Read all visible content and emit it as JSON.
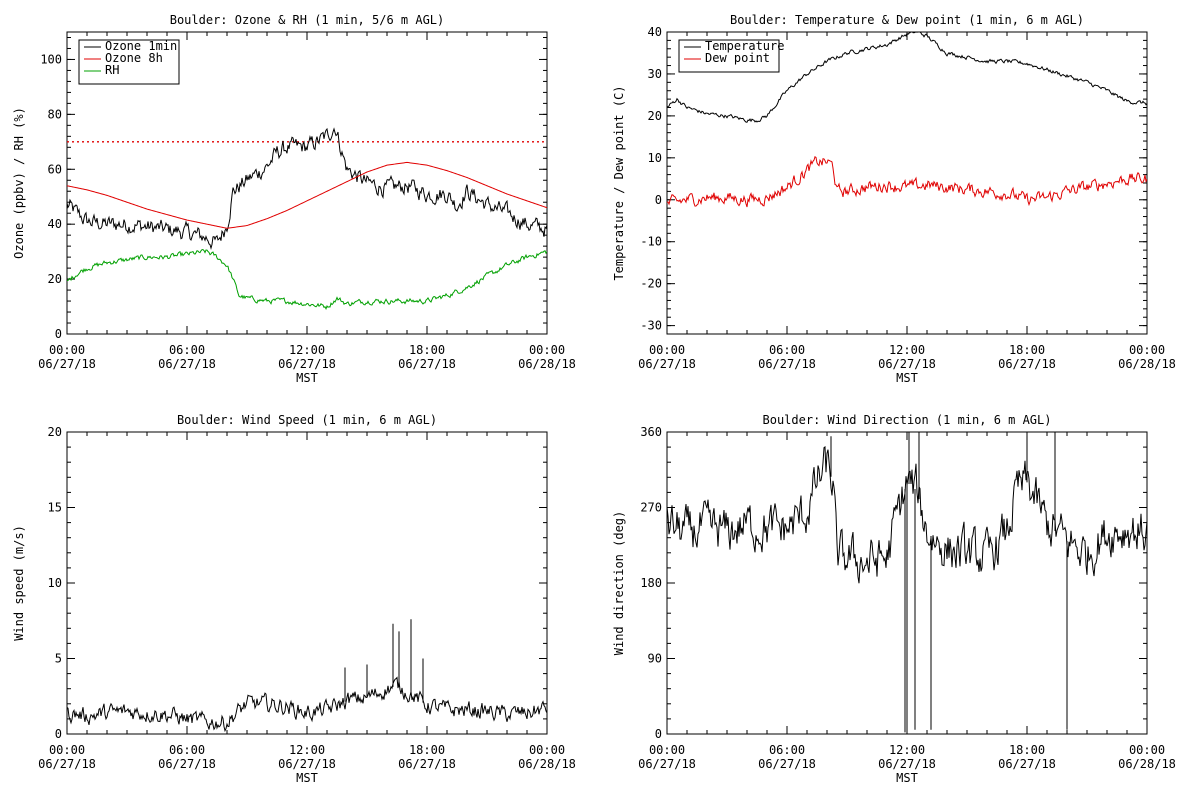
{
  "chart_data": [
    {
      "id": "ozone_rh",
      "type": "line",
      "title": "Boulder: Ozone & RH (1 min, 5/6 m AGL)",
      "xlabel": "MST",
      "ylabel": "Ozone (ppbv) / RH (%)",
      "ylim": [
        0,
        110
      ],
      "yticks": [
        0,
        20,
        40,
        60,
        80,
        100
      ],
      "xlim_hours": [
        0,
        24
      ],
      "xticks": [
        {
          "h": 0,
          "time": "00:00",
          "date": "06/27/18"
        },
        {
          "h": 6,
          "time": "06:00",
          "date": "06/27/18"
        },
        {
          "h": 12,
          "time": "12:00",
          "date": "06/27/18"
        },
        {
          "h": 18,
          "time": "18:00",
          "date": "06/27/18"
        },
        {
          "h": 24,
          "time": "00:00",
          "date": "06/28/18"
        }
      ],
      "legend": {
        "position": "top-left"
      },
      "reference_line": {
        "y": 70,
        "color": "#e00000",
        "style": "dotted"
      },
      "series": [
        {
          "name": "Ozone 1min",
          "color": "#000000",
          "noise": 2.5,
          "x": [
            0,
            0.5,
            1,
            2,
            3,
            4,
            5,
            6,
            7,
            7.5,
            8,
            8.3,
            9,
            10,
            10.5,
            11,
            12,
            12.5,
            13,
            13.4,
            13.8,
            14,
            15,
            16,
            17,
            18,
            19,
            19.5,
            20,
            21,
            22,
            23,
            24
          ],
          "y": [
            47,
            44,
            41,
            40,
            40,
            39,
            38,
            37,
            35,
            33,
            40,
            52,
            56,
            61,
            66,
            68,
            68,
            70,
            72,
            76,
            65,
            60,
            55,
            53,
            54,
            51,
            51,
            47,
            52,
            47,
            44,
            40,
            38
          ]
        },
        {
          "name": "Ozone 8h",
          "color": "#e00000",
          "noise": 0,
          "x": [
            0,
            1,
            2,
            3,
            4,
            5,
            6,
            7,
            8,
            9,
            10,
            11,
            12,
            13,
            14,
            15,
            16,
            17,
            18,
            19,
            20,
            21,
            22,
            23,
            24
          ],
          "y": [
            54,
            52.5,
            50.5,
            48,
            45.5,
            43.5,
            41.5,
            40,
            38.5,
            39.5,
            42,
            45,
            48.5,
            52,
            55.5,
            59,
            61.5,
            62.5,
            61.5,
            59.5,
            57,
            54,
            51,
            48.5,
            46
          ]
        },
        {
          "name": "RH",
          "color": "#00a000",
          "noise": 0.8,
          "x": [
            0,
            0.5,
            1,
            2,
            3,
            4,
            5,
            6,
            7,
            7.5,
            8,
            8.3,
            8.6,
            9,
            10,
            11,
            12,
            13,
            13.5,
            14,
            15,
            16,
            17,
            18,
            19,
            20,
            21,
            22,
            23,
            24
          ],
          "y": [
            19,
            22,
            24,
            26,
            27,
            28,
            28,
            29,
            30,
            28,
            25,
            20,
            14,
            13,
            12,
            12,
            11,
            10,
            13,
            11,
            12,
            12,
            12,
            12,
            14,
            17,
            21,
            25,
            28,
            30
          ]
        }
      ]
    },
    {
      "id": "temp_dew",
      "type": "line",
      "title": "Boulder: Temperature & Dew point (1 min, 6 m AGL)",
      "xlabel": "MST",
      "ylabel": "Temperature / Dew point (C)",
      "ylim": [
        -32,
        40
      ],
      "yticks": [
        -30,
        -20,
        -10,
        0,
        10,
        20,
        30,
        40
      ],
      "xlim_hours": [
        0,
        24
      ],
      "xticks": [
        {
          "h": 0,
          "time": "00:00",
          "date": "06/27/18"
        },
        {
          "h": 6,
          "time": "06:00",
          "date": "06/27/18"
        },
        {
          "h": 12,
          "time": "12:00",
          "date": "06/27/18"
        },
        {
          "h": 18,
          "time": "18:00",
          "date": "06/27/18"
        },
        {
          "h": 24,
          "time": "00:00",
          "date": "06/28/18"
        }
      ],
      "legend": {
        "position": "top-left"
      },
      "series": [
        {
          "name": "Temperature",
          "color": "#000000",
          "noise": 0.4,
          "x": [
            0,
            0.5,
            1,
            2,
            3,
            4,
            4.5,
            5,
            6,
            7,
            8,
            9,
            10,
            11,
            12,
            12.5,
            13,
            13.5,
            14,
            15,
            16,
            17,
            18,
            19,
            20,
            21,
            22,
            23,
            24
          ],
          "y": [
            22,
            24,
            22,
            20.5,
            20,
            19,
            19,
            20,
            26,
            30,
            33,
            35,
            36,
            37,
            39.5,
            40,
            39,
            37,
            35,
            34,
            33,
            33,
            32.5,
            31,
            29.5,
            28,
            26,
            23.5,
            23
          ]
        },
        {
          "name": "Dew point",
          "color": "#e00000",
          "noise": 1.2,
          "x": [
            0,
            1,
            2,
            3,
            4,
            5,
            6,
            7,
            7.5,
            8,
            8.3,
            8.5,
            9,
            10,
            11,
            12,
            13,
            14,
            15,
            16,
            17,
            18,
            19,
            20,
            21,
            22,
            23,
            24
          ],
          "y": [
            -1,
            0,
            0.5,
            0.5,
            0,
            0.5,
            3,
            7,
            9,
            9,
            8,
            2,
            2,
            3,
            3.5,
            3,
            3.5,
            3,
            2.5,
            2,
            1.5,
            0,
            0.5,
            2,
            3,
            4,
            5,
            5
          ]
        }
      ]
    },
    {
      "id": "wind_speed",
      "type": "line",
      "title": "Boulder: Wind Speed (1 min, 6 m AGL)",
      "xlabel": "MST",
      "ylabel": "Wind speed (m/s)",
      "ylim": [
        0,
        20
      ],
      "yticks": [
        0,
        5,
        10,
        15,
        20
      ],
      "xlim_hours": [
        0,
        24
      ],
      "xticks": [
        {
          "h": 0,
          "time": "00:00",
          "date": "06/27/18"
        },
        {
          "h": 6,
          "time": "06:00",
          "date": "06/27/18"
        },
        {
          "h": 12,
          "time": "12:00",
          "date": "06/27/18"
        },
        {
          "h": 18,
          "time": "18:00",
          "date": "06/27/18"
        },
        {
          "h": 24,
          "time": "00:00",
          "date": "06/28/18"
        }
      ],
      "series": [
        {
          "name": "",
          "color": "#000000",
          "noise": 0.45,
          "floor": 0.2,
          "x": [
            0,
            1,
            2,
            3,
            4,
            5,
            6,
            7,
            8,
            9,
            10,
            11,
            12,
            13,
            14,
            15,
            16,
            16.5,
            17,
            18,
            19,
            20,
            21,
            22,
            23,
            24
          ],
          "y": [
            1.4,
            1.2,
            1.4,
            1.5,
            1.4,
            1.3,
            1.0,
            0.8,
            0.8,
            2.0,
            2.0,
            1.8,
            1.4,
            1.6,
            2.2,
            2.4,
            3.0,
            3.2,
            2.8,
            1.9,
            1.6,
            1.6,
            1.5,
            1.3,
            1.4,
            1.7
          ]
        }
      ],
      "spikes": [
        [
          16.3,
          7.3
        ],
        [
          16.6,
          6.8
        ],
        [
          17.2,
          7.6
        ],
        [
          17.8,
          5.0
        ],
        [
          15.0,
          4.6
        ],
        [
          13.9,
          4.4
        ]
      ]
    },
    {
      "id": "wind_dir",
      "type": "line",
      "title": "Boulder: Wind Direction (1 min, 6 m AGL)",
      "xlabel": "MST",
      "ylabel": "Wind direction (deg)",
      "ylim": [
        0,
        360
      ],
      "yticks": [
        0,
        90,
        180,
        270,
        360
      ],
      "xlim_hours": [
        0,
        24
      ],
      "xticks": [
        {
          "h": 0,
          "time": "00:00",
          "date": "06/27/18"
        },
        {
          "h": 6,
          "time": "06:00",
          "date": "06/27/18"
        },
        {
          "h": 12,
          "time": "12:00",
          "date": "06/27/18"
        },
        {
          "h": 18,
          "time": "18:00",
          "date": "06/27/18"
        },
        {
          "h": 24,
          "time": "00:00",
          "date": "06/28/18"
        }
      ],
      "series": [
        {
          "name": "",
          "color": "#000000",
          "noise": 22,
          "x": [
            0,
            1,
            2,
            3,
            4,
            5,
            6,
            7,
            7.5,
            8,
            8.3,
            8.5,
            9,
            10,
            11,
            11.5,
            12,
            12.5,
            13,
            14,
            15,
            16,
            17,
            17.5,
            18,
            19,
            20,
            21,
            22,
            23,
            24
          ],
          "y": [
            250,
            240,
            245,
            240,
            250,
            245,
            245,
            265,
            300,
            320,
            300,
            210,
            210,
            205,
            210,
            260,
            300,
            290,
            240,
            220,
            215,
            210,
            240,
            290,
            300,
            250,
            230,
            215,
            240,
            245,
            240
          ]
        }
      ],
      "spikes": [
        [
          11.9,
          2
        ],
        [
          12.0,
          0
        ],
        [
          12.4,
          5
        ],
        [
          13.2,
          5
        ],
        [
          20.0,
          5
        ],
        [
          12.1,
          360
        ],
        [
          12.6,
          360
        ],
        [
          18.0,
          360
        ],
        [
          19.4,
          360
        ],
        [
          8.2,
          355
        ]
      ]
    }
  ]
}
